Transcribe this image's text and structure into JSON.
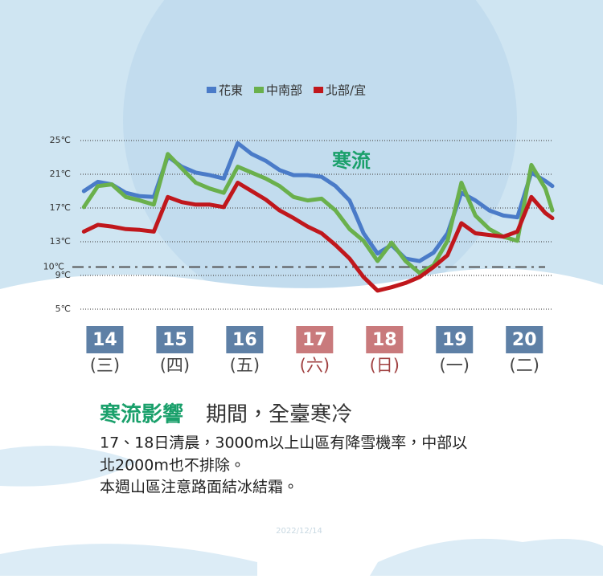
{
  "chart_data": {
    "type": "line",
    "annotation": "寒流",
    "x": [
      13.7,
      13.9,
      14.1,
      14.3,
      14.5,
      14.7,
      14.9,
      15.1,
      15.3,
      15.5,
      15.7,
      15.9,
      16.1,
      16.3,
      16.5,
      16.7,
      16.9,
      17.1,
      17.3,
      17.5,
      17.7,
      17.9,
      18.1,
      18.3,
      18.5,
      18.7,
      18.9,
      19.1,
      19.3,
      19.5,
      19.7,
      19.9,
      20.1,
      20.3,
      20.4
    ],
    "series": [
      {
        "name": "花東",
        "color": "#4a7bc8",
        "values": [
          19.0,
          20.1,
          19.8,
          18.8,
          18.4,
          18.3,
          23.1,
          21.9,
          21.2,
          20.9,
          20.5,
          24.7,
          23.4,
          22.6,
          21.5,
          20.9,
          20.9,
          20.7,
          19.6,
          17.9,
          14.0,
          11.6,
          12.6,
          11.0,
          10.7,
          11.7,
          14.0,
          18.8,
          17.9,
          16.7,
          16.1,
          15.9,
          21.2,
          20.2,
          19.6
        ]
      },
      {
        "name": "中南部",
        "color": "#6ab04c",
        "values": [
          17.1,
          19.6,
          19.8,
          18.3,
          17.9,
          17.4,
          23.4,
          21.7,
          20.0,
          19.3,
          18.8,
          21.9,
          21.2,
          20.5,
          19.6,
          18.3,
          17.9,
          18.1,
          16.7,
          14.5,
          13.1,
          10.7,
          12.9,
          10.7,
          9.3,
          10.2,
          13.1,
          20.0,
          16.1,
          14.5,
          13.6,
          13.1,
          22.1,
          19.3,
          16.7
        ]
      },
      {
        "name": "北部/宜",
        "color": "#c0171c",
        "values": [
          14.2,
          15.0,
          14.8,
          14.5,
          14.4,
          14.2,
          18.3,
          17.7,
          17.4,
          17.4,
          17.1,
          20.0,
          19.0,
          18.0,
          16.7,
          15.8,
          14.8,
          14.0,
          12.6,
          11.0,
          8.8,
          7.2,
          7.6,
          8.1,
          8.8,
          10.0,
          11.4,
          15.2,
          14.0,
          13.8,
          13.6,
          14.2,
          18.3,
          16.4,
          15.8
        ]
      }
    ],
    "xlim": [
      13.65,
      20.4
    ],
    "xticks": [
      14,
      15,
      16,
      17,
      18,
      19,
      20
    ],
    "xtick_sublabels": [
      "(三)",
      "(四)",
      "(五)",
      "(六)",
      "(日)",
      "(一)",
      "(二)"
    ],
    "xtick_colors": [
      "#5e80a6",
      "#5e80a6",
      "#5e80a6",
      "#c97a7c",
      "#c97a7c",
      "#5e80a6",
      "#5e80a6"
    ],
    "ylim": [
      5,
      25
    ],
    "yticks": [
      {
        "value": 5,
        "label": "5℃"
      },
      {
        "value": 9,
        "label": "9℃"
      },
      {
        "value": 13,
        "label": "13℃"
      },
      {
        "value": 17,
        "label": "17℃"
      },
      {
        "value": 21,
        "label": "21℃"
      },
      {
        "value": 25,
        "label": "25℃"
      }
    ],
    "reference_line": {
      "value": 10,
      "label": "10℃"
    },
    "grid": true
  },
  "headline": {
    "highlight": "寒流影響",
    "rest": "期間，全臺寒冷"
  },
  "body": [
    "17、18日清晨，3000m以上山區有降雪機率，中部以",
    "北2000m也不排除。",
    "本週山區注意路面結冰結霜。"
  ],
  "date": "2022/12/14"
}
